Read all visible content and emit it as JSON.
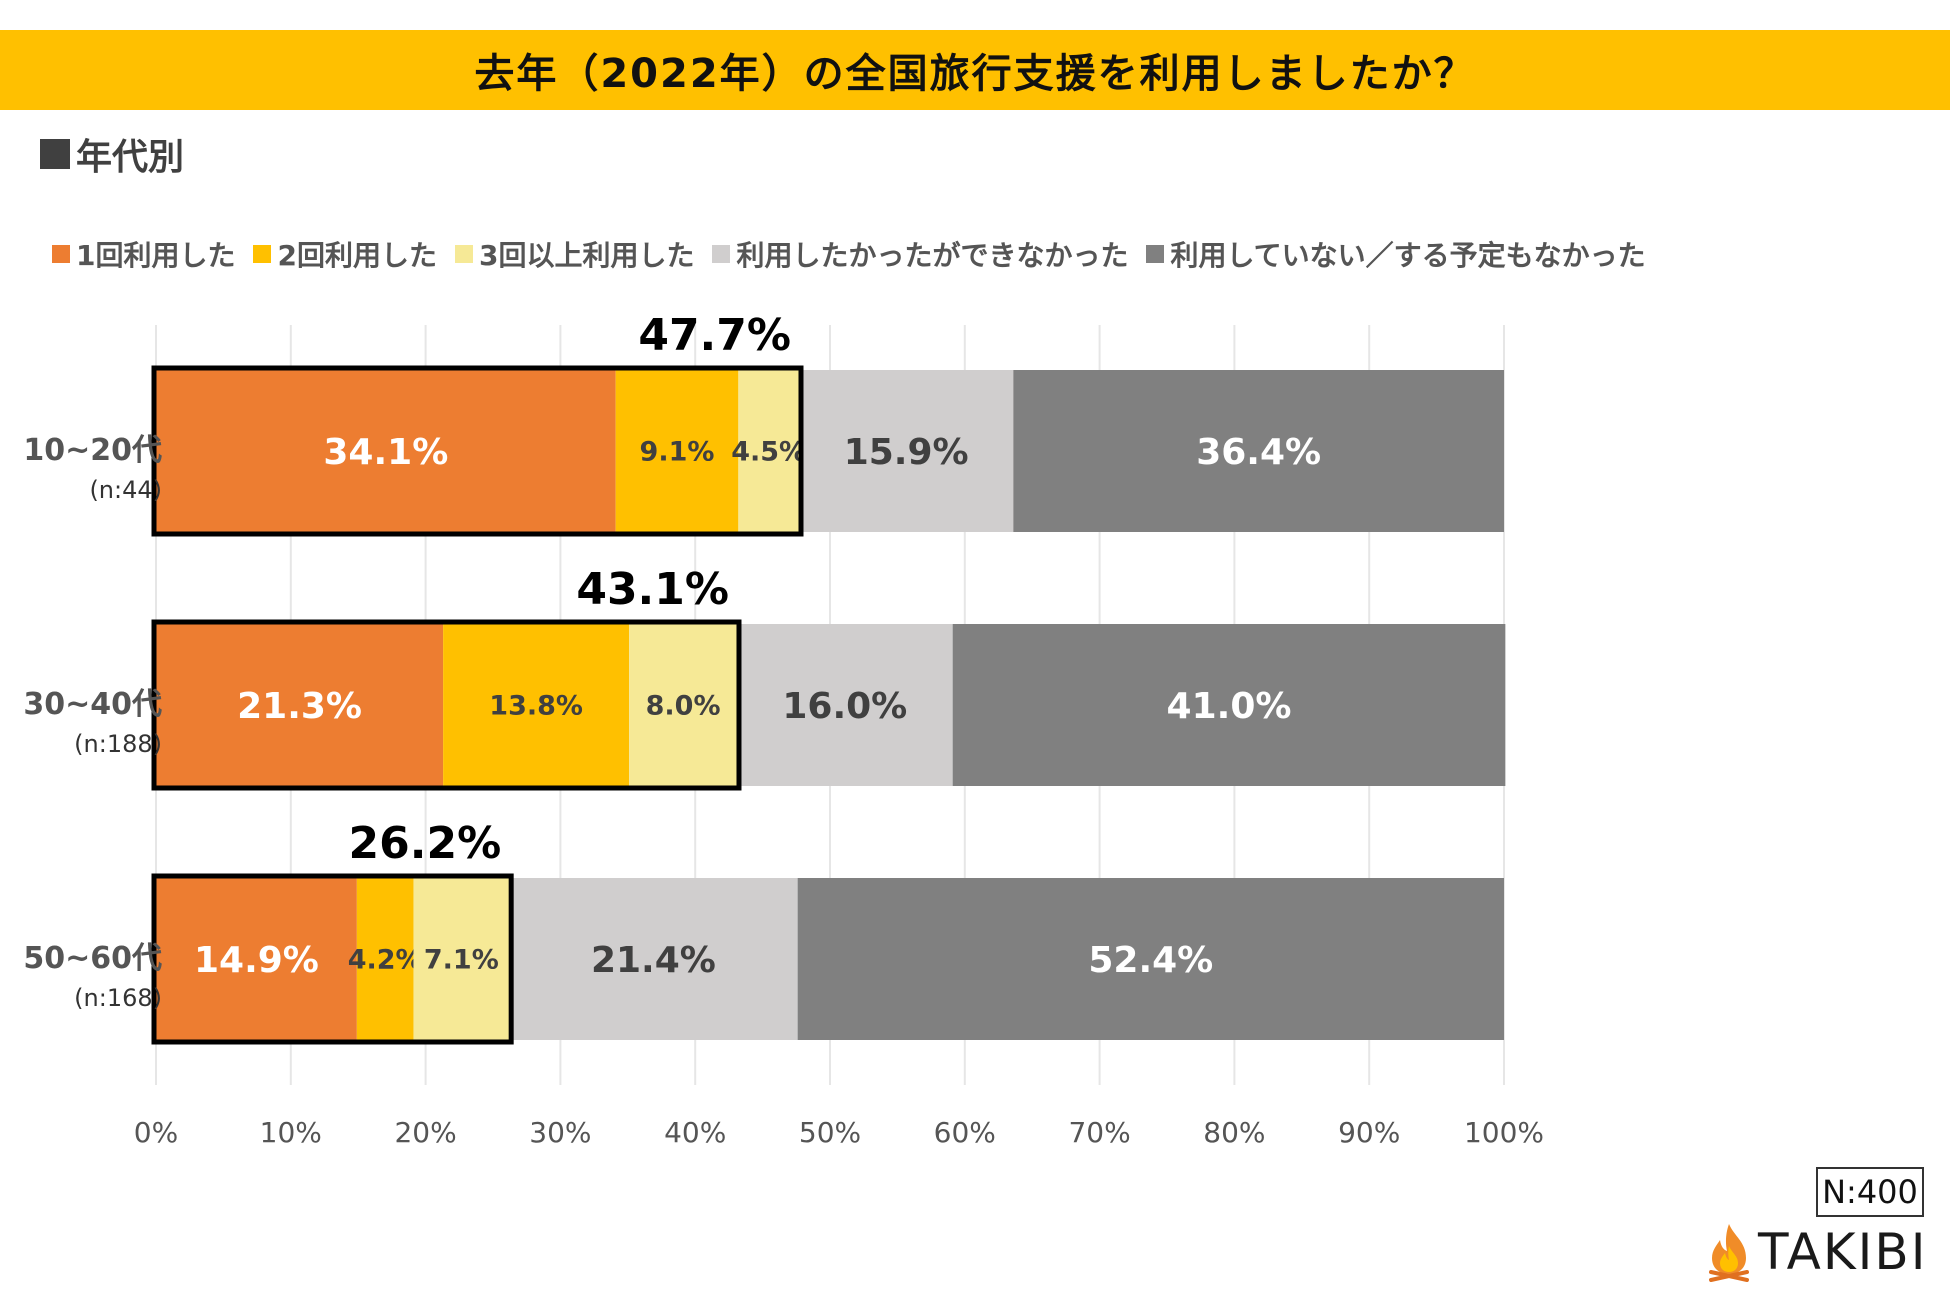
{
  "title": "去年（2022年）の全国旅行支援を利用しましたか？",
  "section_label": "年代別",
  "sample_size": "N:400",
  "brand": {
    "name": "TAKIBI",
    "icon": "flame-icon"
  },
  "colors": {
    "title_bg": "#FFC000",
    "used_once": "#ED7D31",
    "used_twice": "#FFC000",
    "used_three_plus": "#F6E996",
    "wanted_but_could_not": "#D0CECE",
    "not_used": "#808080"
  },
  "chart_data": {
    "type": "bar",
    "orientation": "horizontal",
    "stacked": true,
    "title": "去年（2022年）の全国旅行支援を利用しましたか？",
    "categories": [
      "10~20代",
      "30~40代",
      "50~60代"
    ],
    "category_n": [
      "(n:44)",
      "(n:188)",
      "(n:168)"
    ],
    "series": [
      {
        "name": "1回利用した",
        "color": "#ED7D31",
        "label_color": "#ffffff",
        "label_size": "big",
        "values": [
          34.1,
          21.3,
          14.9
        ],
        "labels": [
          "34.1%",
          "21.3%",
          "14.9%"
        ]
      },
      {
        "name": "2回利用した",
        "color": "#FFC000",
        "label_color": "#404040",
        "label_size": "small",
        "values": [
          9.1,
          13.8,
          4.2
        ],
        "labels": [
          "9.1%",
          "13.8%",
          "4.2%"
        ]
      },
      {
        "name": "3回以上利用した",
        "color": "#F6E996",
        "label_color": "#404040",
        "label_size": "small",
        "values": [
          4.5,
          8.0,
          7.1
        ],
        "labels": [
          "4.5%",
          "8.0%",
          "7.1%"
        ]
      },
      {
        "name": "利用したかったができなかった",
        "color": "#D0CECE",
        "label_color": "#404040",
        "label_size": "big",
        "values": [
          15.9,
          16.0,
          21.4
        ],
        "labels": [
          "15.9%",
          "16.0%",
          "21.4%"
        ]
      },
      {
        "name": "利用していない／する予定もなかった",
        "color": "#808080",
        "label_color": "#ffffff",
        "label_size": "big",
        "values": [
          36.4,
          41.0,
          52.4
        ],
        "labels": [
          "36.4%",
          "41.0%",
          "52.4%"
        ]
      }
    ],
    "highlight_totals": [
      47.7,
      43.1,
      26.2
    ],
    "highlight_total_labels": [
      "47.7%",
      "43.1%",
      "26.2%"
    ],
    "xlim": [
      0,
      100
    ],
    "x_ticks": [
      0,
      10,
      20,
      30,
      40,
      50,
      60,
      70,
      80,
      90,
      100
    ],
    "x_tick_labels": [
      "0%",
      "10%",
      "20%",
      "30%",
      "40%",
      "50%",
      "60%",
      "70%",
      "80%",
      "90%",
      "100%"
    ],
    "grid": true,
    "legend_position": "top"
  }
}
